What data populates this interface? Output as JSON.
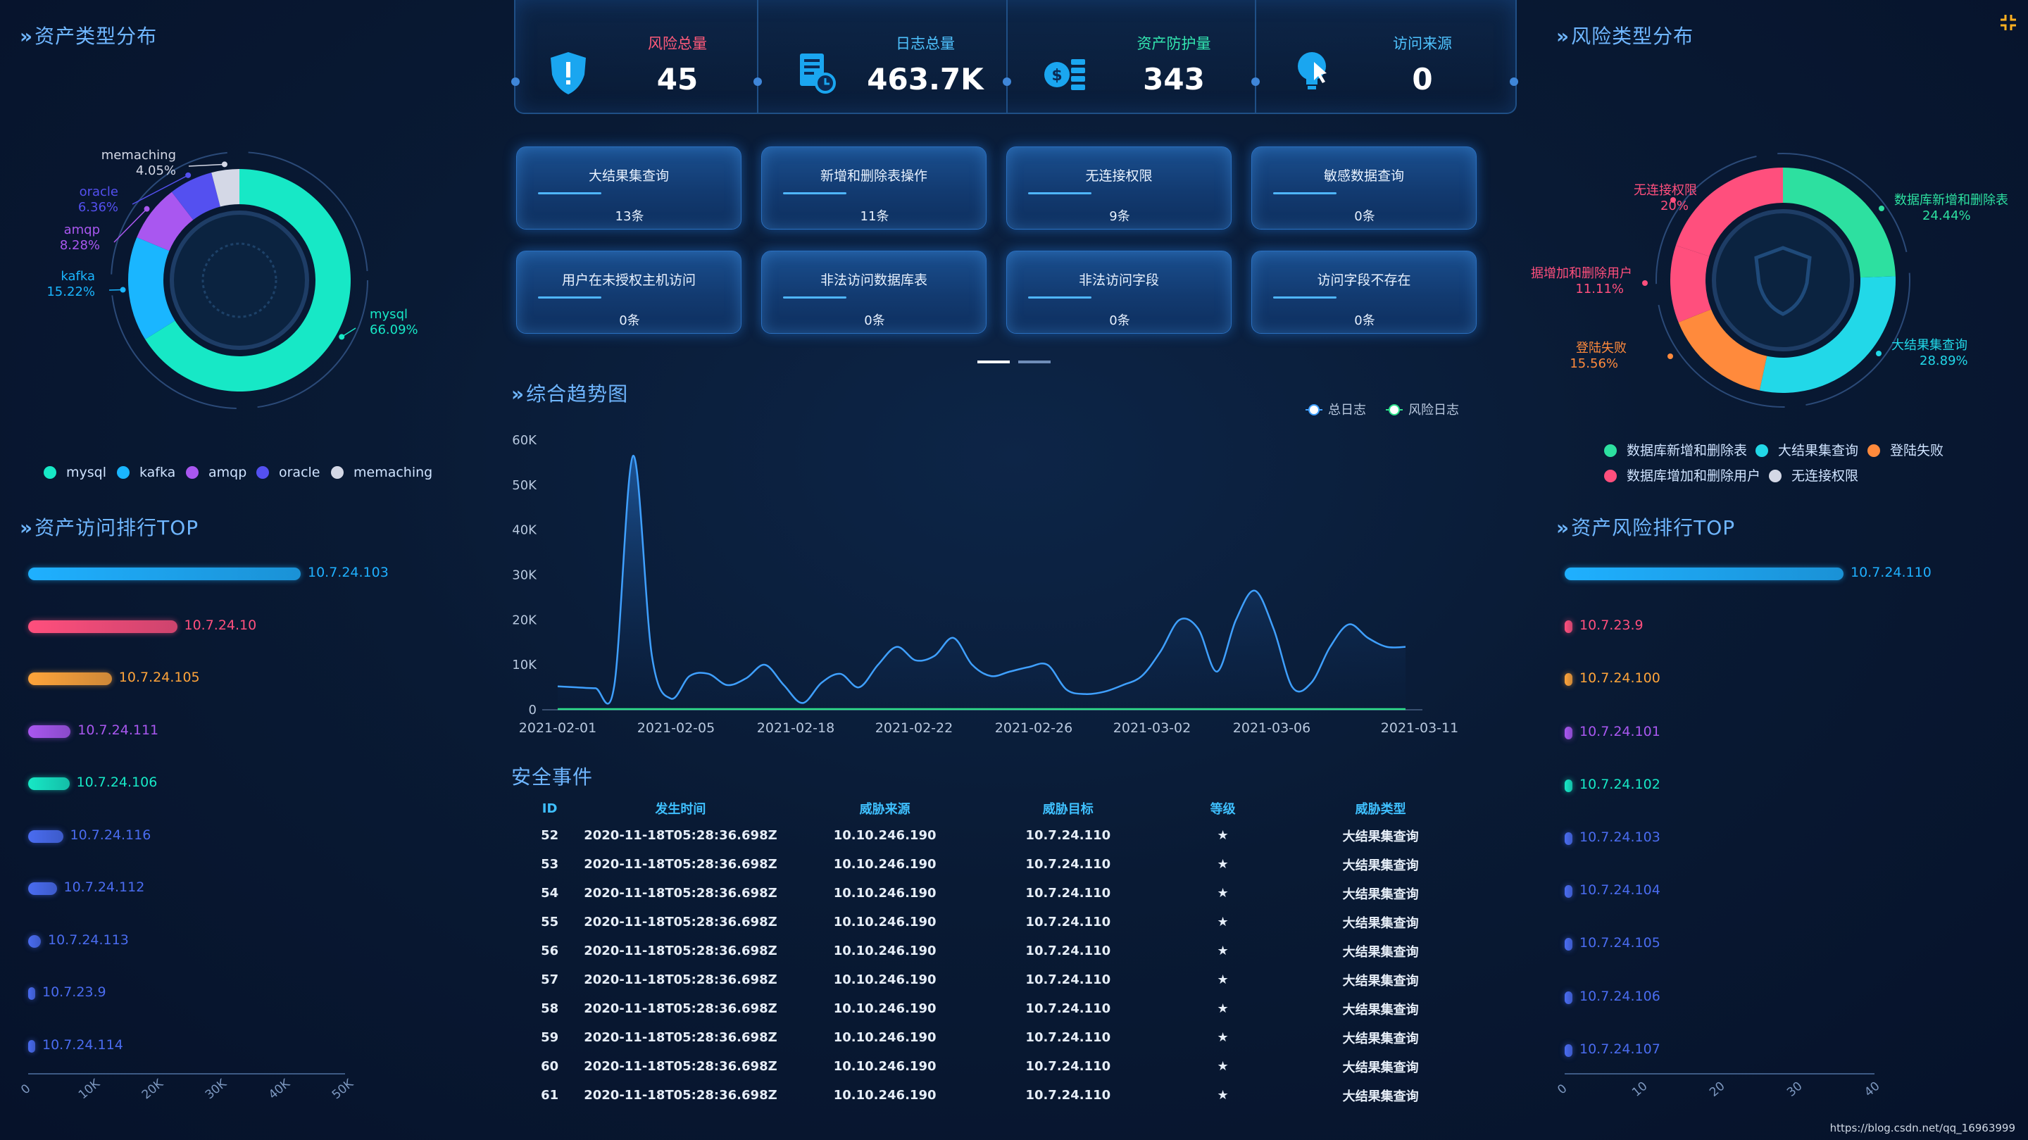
{
  "titles": {
    "asset_type": "资产类型分布",
    "asset_visit": "资产访问排行TOP",
    "risk_type": "风险类型分布",
    "asset_risk": "资产风险排行TOP",
    "trend": "综合趋势图",
    "events": "安全事件"
  },
  "stats": [
    {
      "label": "风险总量",
      "value": "45",
      "color": "#ff5a7a",
      "icon": "shield-icon"
    },
    {
      "label": "日志总量",
      "value": "463.7K",
      "color": "#4fc3ff",
      "icon": "log-document-icon"
    },
    {
      "label": "资产防护量",
      "value": "343",
      "color": "#33e6b0",
      "icon": "coin-stack-icon"
    },
    {
      "label": "访问来源",
      "value": "0",
      "color": "#4fc3ff",
      "icon": "lightbulb-icon"
    }
  ],
  "risk_cards": [
    {
      "title": "大结果集查询",
      "count": "13条"
    },
    {
      "title": "新增和删除表操作",
      "count": "11条"
    },
    {
      "title": "无连接权限",
      "count": "9条"
    },
    {
      "title": "敏感数据查询",
      "count": "0条"
    },
    {
      "title": "用户在未授权主机访问",
      "count": "0条"
    },
    {
      "title": "非法访问数据库表",
      "count": "0条"
    },
    {
      "title": "非法访问字段",
      "count": "0条"
    },
    {
      "title": "访问字段不存在",
      "count": "0条"
    }
  ],
  "asset_type_chart": {
    "type": "pie",
    "slices": [
      {
        "name": "mysql",
        "pct": "66.09%",
        "value": 66.09,
        "color": "#17e8c6"
      },
      {
        "name": "kafka",
        "pct": "15.22%",
        "value": 15.22,
        "color": "#1ab6ff"
      },
      {
        "name": "amqp",
        "pct": "8.28%",
        "value": 8.28,
        "color": "#a957f0"
      },
      {
        "name": "oracle",
        "pct": "6.36%",
        "value": 6.36,
        "color": "#5450f0"
      },
      {
        "name": "memaching",
        "pct": "4.05%",
        "value": 4.05,
        "color": "#d4d8e6"
      }
    ]
  },
  "risk_type_chart": {
    "type": "pie",
    "slices": [
      {
        "name": "数据库新增和删除表",
        "pct": "24.44%",
        "value": 24.44,
        "color": "#2de0a0"
      },
      {
        "name": "大结果集查询",
        "pct": "28.89%",
        "value": 28.89,
        "color": "#22d8e8"
      },
      {
        "name": "登陆失败",
        "pct": "15.56%",
        "value": 15.56,
        "color": "#ff8a3c"
      },
      {
        "name": "数据库增加和删除用户",
        "pct": "11.11%",
        "value": 11.11,
        "color": "#ff4f7d"
      },
      {
        "name": "无连接权限",
        "pct": "20%",
        "value": 20,
        "color": "#ff4f7d"
      }
    ],
    "labels_shown": {
      "lbl_a": "无连接权限",
      "lbl_a_pct": "20%",
      "lbl_b": "数据库新增和删除表",
      "lbl_b_pct": "24.44%",
      "lbl_c": "据增加和删除用户",
      "lbl_c_pct": "11.11%",
      "lbl_d": "登陆失败",
      "lbl_d_pct": "15.56%",
      "lbl_e": "大结果集查询",
      "lbl_e_pct": "28.89%"
    },
    "legend": [
      {
        "name": "数据库新增和删除表",
        "color": "#2de0a0"
      },
      {
        "name": "大结果集查询",
        "color": "#22d8e8"
      },
      {
        "name": "登陆失败",
        "color": "#ff8a3c"
      },
      {
        "name": "数据库增加和删除用户",
        "color": "#ff4f7d"
      },
      {
        "name": "无连接权限",
        "color": "#d4d8e6"
      }
    ]
  },
  "asset_visit_top": {
    "type": "bar",
    "axis_ticks": [
      "0",
      "10K",
      "20K",
      "30K",
      "40K",
      "50K"
    ],
    "xlim": [
      0,
      50000
    ],
    "items": [
      {
        "ip": "10.7.24.103",
        "value": 43000,
        "color": "#1fb0ff"
      },
      {
        "ip": "10.7.24.10",
        "value": 23500,
        "color": "#ff4f7d"
      },
      {
        "ip": "10.7.24.105",
        "value": 13200,
        "color": "#ffa43a"
      },
      {
        "ip": "10.7.24.111",
        "value": 6700,
        "color": "#a957f0"
      },
      {
        "ip": "10.7.24.106",
        "value": 6500,
        "color": "#17e8c6"
      },
      {
        "ip": "10.7.24.116",
        "value": 5500,
        "color": "#4a6cf0"
      },
      {
        "ip": "10.7.24.112",
        "value": 4500,
        "color": "#4a6cf0"
      },
      {
        "ip": "10.7.24.113",
        "value": 2000,
        "color": "#4a6cf0"
      },
      {
        "ip": "10.7.23.9",
        "value": 1000,
        "color": "#4a6cf0"
      },
      {
        "ip": "10.7.24.114",
        "value": 500,
        "color": "#4a6cf0"
      }
    ]
  },
  "asset_risk_top": {
    "type": "bar",
    "axis_ticks": [
      "0",
      "10",
      "20",
      "30",
      "40"
    ],
    "xlim": [
      0,
      40
    ],
    "items": [
      {
        "ip": "10.7.24.110",
        "value": 36,
        "color": "#1fb0ff"
      },
      {
        "ip": "10.7.23.9",
        "value": 1,
        "color": "#ff4f7d"
      },
      {
        "ip": "10.7.24.100",
        "value": 1,
        "color": "#ffa43a"
      },
      {
        "ip": "10.7.24.101",
        "value": 1,
        "color": "#a957f0"
      },
      {
        "ip": "10.7.24.102",
        "value": 1,
        "color": "#17e8c6"
      },
      {
        "ip": "10.7.24.103",
        "value": 1,
        "color": "#4a6cf0"
      },
      {
        "ip": "10.7.24.104",
        "value": 1,
        "color": "#4a6cf0"
      },
      {
        "ip": "10.7.24.105",
        "value": 1,
        "color": "#4a6cf0"
      },
      {
        "ip": "10.7.24.106",
        "value": 1,
        "color": "#4a6cf0"
      },
      {
        "ip": "10.7.24.107",
        "value": 1,
        "color": "#4a6cf0"
      }
    ]
  },
  "chart_data": {
    "type": "area",
    "title": "综合趋势图",
    "legend": [
      "总日志",
      "风险日志"
    ],
    "legend_placement": "top-right",
    "y_ticks": [
      "0",
      "10K",
      "20K",
      "30K",
      "40K",
      "50K",
      "60K"
    ],
    "ylim": [
      0,
      60000
    ],
    "x_ticks": [
      "2021-02-01",
      "2021-02-05",
      "2021-02-18",
      "2021-02-22",
      "2021-02-26",
      "2021-03-02",
      "2021-03-06",
      "2021-03-11"
    ],
    "series": [
      {
        "name": "总日志",
        "color": "#3fa0ff",
        "values": [
          5200,
          5000,
          4800,
          5300,
          56500,
          12000,
          2500,
          7500,
          8000,
          5500,
          7000,
          10000,
          5500,
          1500,
          6000,
          8000,
          5000,
          10000,
          14000,
          11000,
          12000,
          16000,
          10000,
          7500,
          8500,
          9500,
          10000,
          4500,
          3500,
          4000,
          5500,
          7500,
          13000,
          20000,
          18000,
          8500,
          20000,
          26500,
          18000,
          5000,
          6000,
          14000,
          19000,
          16000,
          14000,
          14000
        ]
      },
      {
        "name": "风险日志",
        "color": "#2de08a",
        "values": [
          0,
          0,
          0,
          0,
          0,
          0,
          0,
          0,
          0,
          0,
          0,
          0,
          0,
          0,
          0,
          0,
          0,
          0,
          0,
          0,
          0,
          0,
          0,
          0,
          0,
          0,
          0,
          0,
          0,
          0,
          0,
          0,
          0,
          0,
          0,
          0,
          0,
          0,
          0,
          0,
          0,
          0,
          0,
          0,
          0,
          0
        ]
      }
    ]
  },
  "events": {
    "headers": [
      "ID",
      "发生时间",
      "威胁来源",
      "威胁目标",
      "等级",
      "威胁类型"
    ],
    "rows": [
      [
        "52",
        "2020-11-18T05:28:36.698Z",
        "10.10.246.190",
        "10.7.24.110",
        "★",
        "大结果集查询"
      ],
      [
        "53",
        "2020-11-18T05:28:36.698Z",
        "10.10.246.190",
        "10.7.24.110",
        "★",
        "大结果集查询"
      ],
      [
        "54",
        "2020-11-18T05:28:36.698Z",
        "10.10.246.190",
        "10.7.24.110",
        "★",
        "大结果集查询"
      ],
      [
        "55",
        "2020-11-18T05:28:36.698Z",
        "10.10.246.190",
        "10.7.24.110",
        "★",
        "大结果集查询"
      ],
      [
        "56",
        "2020-11-18T05:28:36.698Z",
        "10.10.246.190",
        "10.7.24.110",
        "★",
        "大结果集查询"
      ],
      [
        "57",
        "2020-11-18T05:28:36.698Z",
        "10.10.246.190",
        "10.7.24.110",
        "★",
        "大结果集查询"
      ],
      [
        "58",
        "2020-11-18T05:28:36.698Z",
        "10.10.246.190",
        "10.7.24.110",
        "★",
        "大结果集查询"
      ],
      [
        "59",
        "2020-11-18T05:28:36.698Z",
        "10.10.246.190",
        "10.7.24.110",
        "★",
        "大结果集查询"
      ],
      [
        "60",
        "2020-11-18T05:28:36.698Z",
        "10.10.246.190",
        "10.7.24.110",
        "★",
        "大结果集查询"
      ],
      [
        "61",
        "2020-11-18T05:28:36.698Z",
        "10.10.246.190",
        "10.7.24.110",
        "★",
        "大结果集查询"
      ]
    ]
  },
  "watermark": "https://blog.csdn.net/qq_16963999"
}
